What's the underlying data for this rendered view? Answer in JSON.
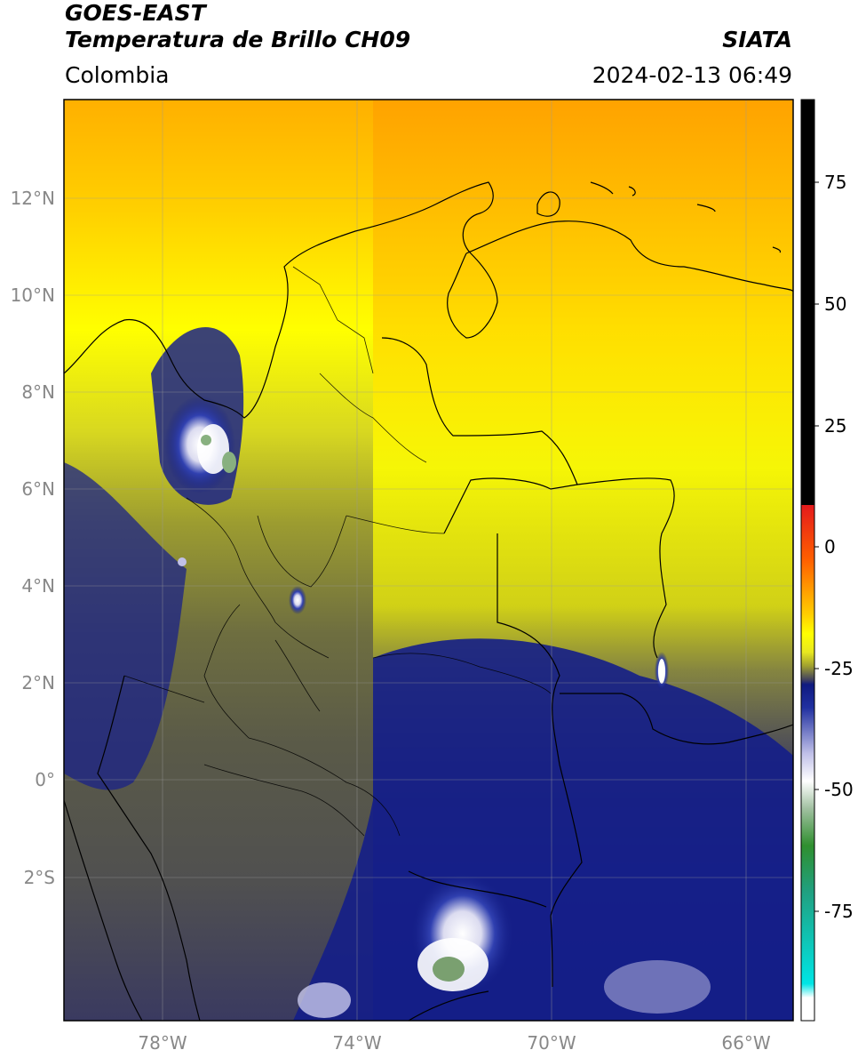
{
  "header": {
    "satellite": "GOES-EAST",
    "product": "Temperatura de Brillo CH09",
    "region": "Colombia",
    "agency": "SIATA",
    "datetime": "2024-02-13 06:49"
  },
  "map": {
    "lon_range": [
      -80,
      -65
    ],
    "lat_range": [
      -5,
      14
    ],
    "lon_ticks": [
      "78°W",
      "74°W",
      "70°W",
      "66°W"
    ],
    "lat_ticks": [
      "12°N",
      "10°N",
      "8°N",
      "6°N",
      "4°N",
      "2°N",
      "0°",
      "2°S"
    ],
    "grid": true
  },
  "colorbar": {
    "ticks": [
      "75",
      "50",
      "25",
      "0",
      "-25",
      "-50",
      "-75"
    ],
    "colors": {
      "warm_black": "#000000",
      "red": "#e41a1c",
      "orange": "#ff8c00",
      "yellow": "#ffff00",
      "olive": "#6b6b3a",
      "gray": "#4a4a5a",
      "navy": "#0f1a80",
      "white": "#ffffff",
      "green": "#2f8f2f",
      "cyan": "#00e5e5"
    }
  }
}
